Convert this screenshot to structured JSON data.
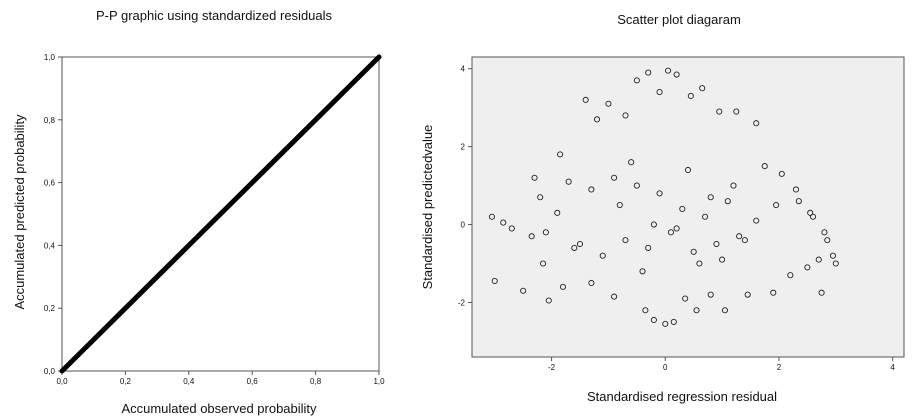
{
  "chart_data": [
    {
      "type": "line",
      "title": "P-P graphic using standardized residuals",
      "xlabel": "Accumulated observed probability",
      "ylabel": "Accumulated predicted probability",
      "xlim": [
        0,
        1
      ],
      "ylim": [
        0,
        1
      ],
      "x_ticks": [
        0,
        0.2,
        0.4,
        0.6,
        0.8,
        1.0
      ],
      "y_ticks": [
        0,
        0.2,
        0.4,
        0.6,
        0.8,
        1.0
      ],
      "x_tick_labels": [
        "0,0",
        "0,2",
        "0,4",
        "0,6",
        "0,8",
        "1,0"
      ],
      "y_tick_labels": [
        "0,0",
        "0,2",
        "0,4",
        "0,6",
        "0,8",
        "1,0"
      ],
      "grid": false,
      "background": "#ffffff",
      "series": [
        {
          "x": [
            0.0,
            0.1,
            0.2,
            0.3,
            0.4,
            0.5,
            0.6,
            0.7,
            0.8,
            0.9,
            1.0
          ],
          "y": [
            0.0,
            0.1,
            0.2,
            0.3,
            0.4,
            0.5,
            0.6,
            0.7,
            0.8,
            0.9,
            1.0
          ]
        }
      ],
      "line_color": "#000000"
    },
    {
      "type": "scatter",
      "title": "Scatter plot diagaram",
      "xlabel": "Standardised regression residual",
      "ylabel": "Standardised predictedvalue",
      "xlim": [
        -3.4,
        4.2
      ],
      "ylim": [
        -3.4,
        4.3
      ],
      "x_ticks": [
        -2,
        0,
        2,
        4
      ],
      "y_ticks": [
        -2,
        0,
        2,
        4
      ],
      "x_tick_labels": [
        "-2",
        "0",
        "2",
        "4"
      ],
      "y_tick_labels": [
        "-2",
        "0",
        "2",
        "4"
      ],
      "grid": false,
      "background": "#efefef",
      "marker": "open-circle",
      "marker_color": "#222222",
      "series": [
        {
          "x": [
            -3.05,
            -3.0,
            -2.85,
            -2.7,
            -2.5,
            -2.35,
            -2.3,
            -2.2,
            -2.15,
            -2.05,
            -1.85,
            -1.8,
            -1.4,
            -1.3,
            -1.2,
            -1.0,
            -0.9,
            -0.7,
            -0.5,
            -0.35,
            -0.3,
            -0.2,
            -0.1,
            0.0,
            0.05,
            0.15,
            0.2,
            0.35,
            0.45,
            0.55,
            0.65,
            0.8,
            0.95,
            1.05,
            1.25,
            1.45,
            1.6,
            1.75,
            1.9,
            2.05,
            2.2,
            2.35,
            2.5,
            2.6,
            2.7,
            2.75,
            2.85,
            2.95,
            3.0,
            2.8,
            2.55,
            2.3,
            1.95,
            1.6,
            1.3,
            1.1,
            0.9,
            0.7,
            0.5,
            0.3,
            0.1,
            -0.1,
            -0.3,
            -0.5,
            -0.7,
            -0.9,
            -1.1,
            -1.3,
            -1.5,
            -1.7,
            -1.9,
            -2.1,
            -0.6,
            -0.4,
            0.4,
            0.6,
            0.8,
            1.0,
            1.2,
            -0.2,
            0.2,
            -0.8,
            1.4,
            -1.6
          ],
          "y": [
            0.2,
            -1.45,
            0.05,
            -0.1,
            -1.7,
            -0.3,
            1.2,
            0.7,
            -1.0,
            -1.95,
            1.8,
            -1.6,
            3.2,
            -1.5,
            2.7,
            3.1,
            -1.85,
            2.8,
            3.7,
            -2.2,
            3.9,
            -2.45,
            3.4,
            -2.55,
            3.95,
            -2.5,
            3.85,
            -1.9,
            3.3,
            -2.2,
            3.5,
            -1.8,
            2.9,
            -2.2,
            2.9,
            -1.8,
            2.6,
            1.5,
            -1.75,
            1.3,
            -1.3,
            0.6,
            -1.1,
            0.2,
            -0.9,
            -1.75,
            -0.4,
            -0.8,
            -1.0,
            -0.2,
            0.3,
            0.9,
            0.5,
            0.1,
            -0.3,
            0.6,
            -0.5,
            0.2,
            -0.7,
            0.4,
            -0.2,
            0.8,
            -0.6,
            1.0,
            -0.4,
            1.2,
            -0.8,
            0.9,
            -0.5,
            1.1,
            0.3,
            -0.2,
            1.6,
            -1.2,
            1.4,
            -1.0,
            0.7,
            -0.9,
            1.0,
            0.0,
            -0.1,
            0.5,
            -0.4,
            -0.6
          ]
        }
      ]
    }
  ]
}
